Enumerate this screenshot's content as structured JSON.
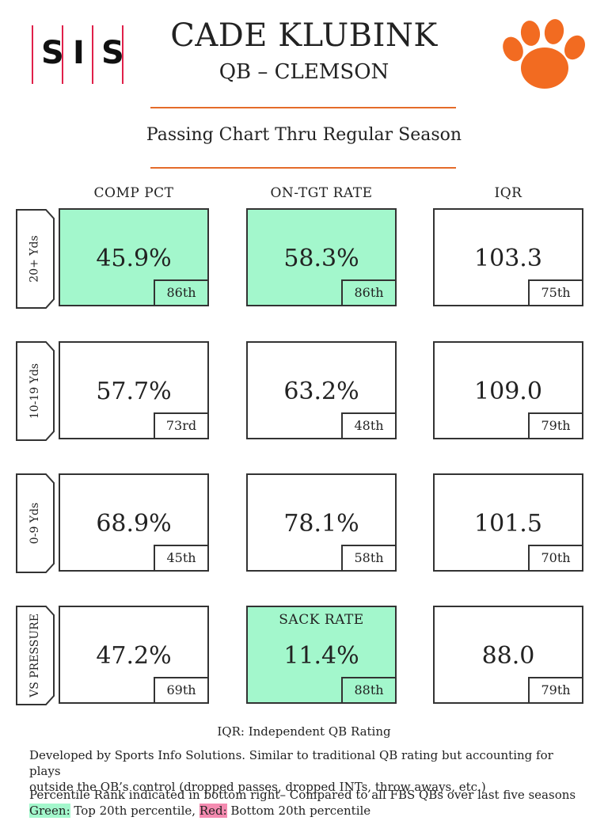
{
  "header": {
    "logo_letters": [
      "S",
      "I",
      "S"
    ],
    "player_name": "CADE KLUBINK",
    "position_team": "QB – CLEMSON",
    "subtitle": "Passing Chart Thru Regular Season",
    "team_logo": "paw-icon"
  },
  "columns": [
    "COMP PCT",
    "ON-TGT RATE",
    "IQR"
  ],
  "rows": [
    {
      "label": "20+ Yds",
      "cells": [
        {
          "value": "45.9%",
          "percentile": "86th",
          "highlight": "green"
        },
        {
          "value": "58.3%",
          "percentile": "86th",
          "highlight": "green"
        },
        {
          "value": "103.3",
          "percentile": "75th",
          "highlight": "none"
        }
      ]
    },
    {
      "label": "10-19 Yds",
      "cells": [
        {
          "value": "57.7%",
          "percentile": "73rd",
          "highlight": "none"
        },
        {
          "value": "63.2%",
          "percentile": "48th",
          "highlight": "none"
        },
        {
          "value": "109.0",
          "percentile": "79th",
          "highlight": "none"
        }
      ]
    },
    {
      "label": "0-9 Yds",
      "cells": [
        {
          "value": "68.9%",
          "percentile": "45th",
          "highlight": "none"
        },
        {
          "value": "78.1%",
          "percentile": "58th",
          "highlight": "none"
        },
        {
          "value": "101.5",
          "percentile": "70th",
          "highlight": "none"
        }
      ]
    },
    {
      "label": "VS PRESSURE",
      "cells": [
        {
          "value": "47.2%",
          "percentile": "69th",
          "highlight": "none"
        },
        {
          "label": "SACK RATE",
          "value": "11.4%",
          "percentile": "88th",
          "highlight": "green"
        },
        {
          "value": "88.0",
          "percentile": "79th",
          "highlight": "none"
        }
      ]
    }
  ],
  "footer": {
    "iqr_def": "IQR: Independent QB Rating",
    "iqr_desc_1": "Developed by Sports Info Solutions. Similar to traditional QB rating but accounting for plays",
    "iqr_desc_2": "outside the QB’s control (dropped passes, dropped INTs, throw aways, etc.)",
    "pct_note": "Percentile Rank indicated in bottom right– Compared to all FBS QBs over last five seasons",
    "green_label": "Green:",
    "green_text": " Top 20th percentile, ",
    "red_label": "Red:",
    "red_text": " Bottom 20th percentile"
  },
  "colors": {
    "green": "#a3f7cc",
    "red": "#f48bb0",
    "orange": "#e46b2a",
    "logo_red": "#e0204a"
  }
}
